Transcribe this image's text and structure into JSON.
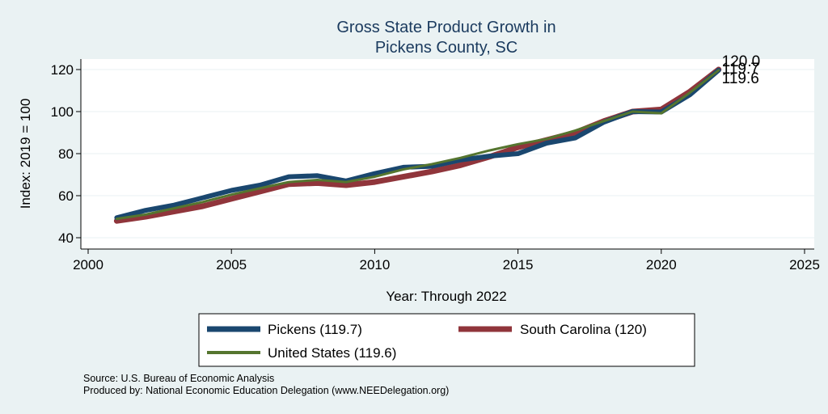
{
  "chart_data": {
    "type": "line",
    "title": [
      "Gross State Product Growth in",
      "Pickens County, SC"
    ],
    "xlabel": "Year: Through 2022",
    "ylabel": "Index: 2019 = 100",
    "xlim": [
      2000,
      2025
    ],
    "ylim": [
      40,
      120
    ],
    "x_ticks": [
      2000,
      2005,
      2010,
      2015,
      2020,
      2025
    ],
    "y_ticks": [
      40,
      60,
      80,
      100,
      120
    ],
    "grid": true,
    "x": [
      2001,
      2002,
      2003,
      2004,
      2005,
      2006,
      2007,
      2008,
      2009,
      2010,
      2011,
      2012,
      2013,
      2014,
      2015,
      2016,
      2017,
      2018,
      2019,
      2020,
      2021,
      2022
    ],
    "series": [
      {
        "name": "Pickens",
        "legend_label": "Pickens  (119.7)",
        "color": "#1a476f",
        "values": [
          49.5,
          53.0,
          55.5,
          59.0,
          62.5,
          65.0,
          69.0,
          69.5,
          67.0,
          70.5,
          73.5,
          74.0,
          77.0,
          78.8,
          80.0,
          85.0,
          87.5,
          95.0,
          100.0,
          99.8,
          108.0,
          119.7
        ]
      },
      {
        "name": "South Carolina",
        "legend_label": "South Carolina (120)",
        "color": "#90353b",
        "values": [
          48.0,
          50.0,
          52.5,
          55.0,
          58.5,
          62.0,
          65.5,
          66.0,
          65.0,
          66.5,
          69.0,
          71.5,
          74.5,
          78.5,
          83.0,
          86.5,
          90.0,
          95.5,
          100.0,
          101.0,
          109.5,
          120.0
        ]
      },
      {
        "name": "United States",
        "legend_label": "United States (119.6)",
        "color": "#55752f",
        "values": [
          49.0,
          51.0,
          54.0,
          57.0,
          60.5,
          63.5,
          66.5,
          67.5,
          66.5,
          69.0,
          72.5,
          75.0,
          78.0,
          81.5,
          84.5,
          87.0,
          91.0,
          95.5,
          100.0,
          99.2,
          109.0,
          119.6
        ]
      }
    ],
    "end_labels": [
      "120.0",
      "119.7",
      "119.6"
    ],
    "legend_position": "bottom"
  },
  "footnotes": {
    "source": "Source: U.S. Bureau of Economic Analysis",
    "produced": "Produced by: National Economic Education Delegation (www.NEEDelegation.org)"
  }
}
